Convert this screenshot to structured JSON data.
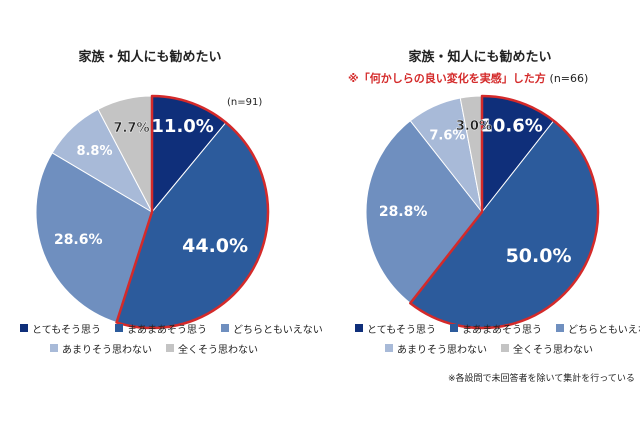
{
  "chart_data": [
    {
      "type": "pie",
      "title": "家族・知人にも勧めたい",
      "subtitle": "",
      "n_label": "(n=91)",
      "categories": [
        "とてもそう思う",
        "まあまあそう思う",
        "どちらともいえない",
        "あまりそう思わない",
        "全くそう思わない"
      ],
      "values": [
        11.0,
        44.0,
        28.6,
        8.8,
        7.7
      ],
      "labels": [
        "11.0%",
        "44.0%",
        "28.6%",
        "8.8%",
        "7.7%"
      ],
      "highlight": "first two slices outlined in red"
    },
    {
      "type": "pie",
      "title": "家族・知人にも勧めたい",
      "subtitle": "※「何かしらの良い変化を実感」した方",
      "n_label": "(n=66)",
      "categories": [
        "とてもそう思う",
        "まあまあそう思う",
        "どちらともいえない",
        "あまりそう思わない",
        "全くそう思わない"
      ],
      "values": [
        10.6,
        50.0,
        28.8,
        7.6,
        3.0
      ],
      "labels": [
        "10.6%",
        "50.0%",
        "28.8%",
        "7.6%",
        "3.0%"
      ],
      "highlight": "first two slices outlined in red"
    }
  ],
  "colors": {
    "slices": [
      "#0f2f7a",
      "#2c5b9c",
      "#6f8fbf",
      "#a8bad8",
      "#c4c4c4"
    ],
    "outline": "#d42a2a"
  },
  "legend": {
    "items": [
      "とてもそう思う",
      "まあまあそう思う",
      "どちらともいえない",
      "あまりそう思わない",
      "全くそう思わない"
    ]
  },
  "footnote": "※各設問で未回答者を除いて集計を行っている"
}
